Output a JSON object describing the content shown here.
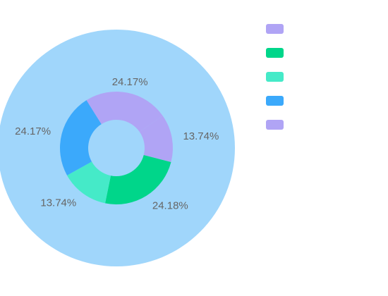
{
  "chart_data": {
    "type": "pie",
    "series": [
      {
        "name": "",
        "values": [
          100
        ],
        "colors": [
          "#a0d6fb"
        ]
      },
      {
        "name": "",
        "slices": [
          {
            "value": 13.74,
            "label": "13.74%",
            "color": "#b0a4f5"
          },
          {
            "value": 24.18,
            "label": "24.18%",
            "color": "#00d68a"
          },
          {
            "value": 13.74,
            "label": "13.74%",
            "color": "#45eac8"
          },
          {
            "value": 24.17,
            "label": "24.17%",
            "color": "#3ba9fb"
          },
          {
            "value": 24.17,
            "label": "24.17%",
            "color": "#b0a4f5"
          }
        ]
      }
    ],
    "legend": {
      "position": "top-right",
      "entries": [
        {
          "label": "",
          "color": "#b0a4f5"
        },
        {
          "label": "",
          "color": "#00d68a"
        },
        {
          "label": "",
          "color": "#45eac8"
        },
        {
          "label": "",
          "color": "#3ba9fb"
        },
        {
          "label": "",
          "color": "#b0a4f5"
        }
      ]
    }
  }
}
